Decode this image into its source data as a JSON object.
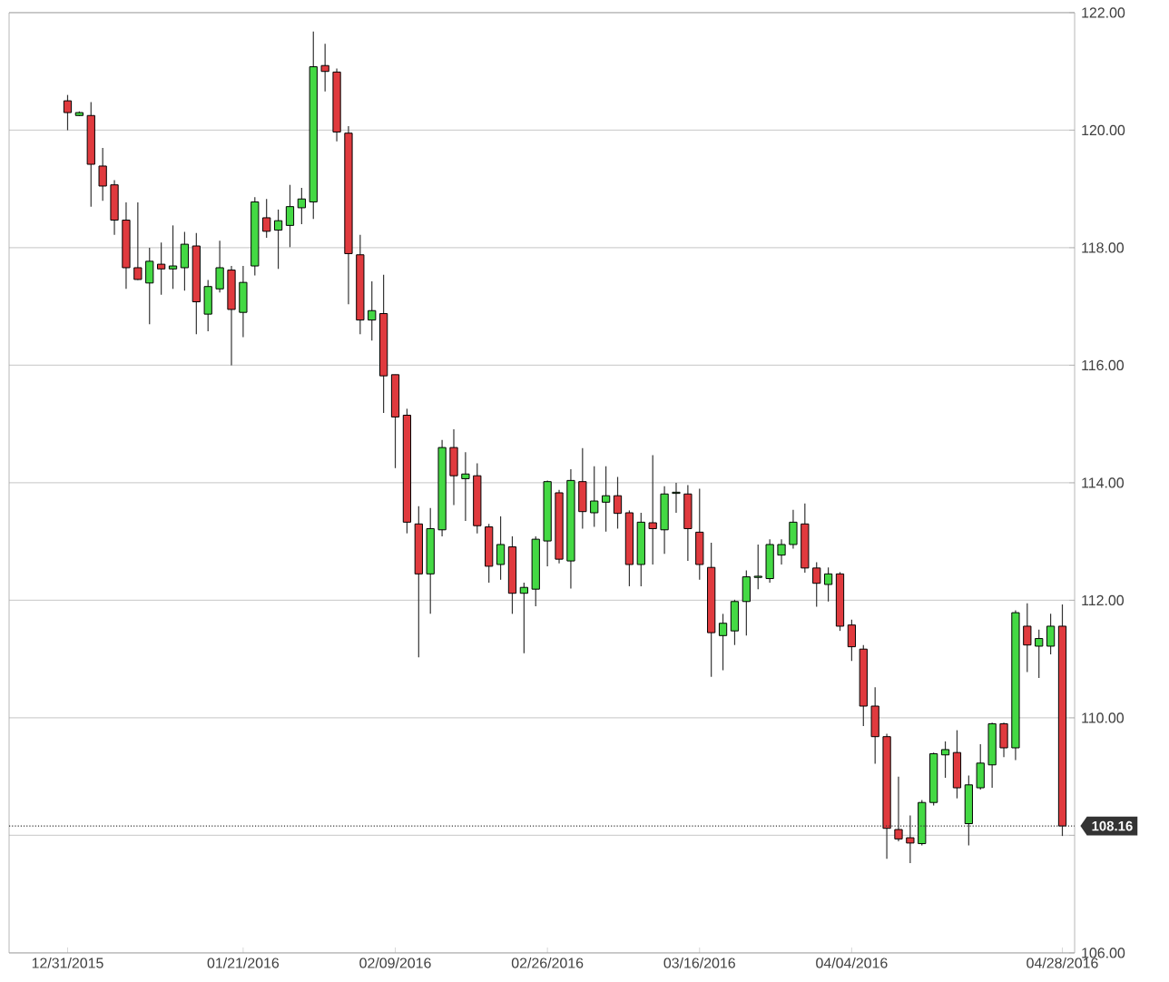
{
  "chart_data": {
    "type": "candlestick",
    "categories": [
      "12/31/2015",
      null,
      null,
      null,
      null,
      null,
      null,
      null,
      null,
      null,
      null,
      null,
      null,
      null,
      null,
      "01/21/2016",
      null,
      null,
      null,
      null,
      null,
      null,
      null,
      null,
      null,
      null,
      null,
      null,
      "02/09/2016",
      null,
      null,
      null,
      null,
      null,
      null,
      null,
      null,
      null,
      null,
      null,
      null,
      "02/26/2016",
      null,
      null,
      null,
      null,
      null,
      null,
      null,
      null,
      null,
      null,
      null,
      null,
      "03/16/2016",
      null,
      null,
      null,
      null,
      null,
      null,
      null,
      null,
      null,
      null,
      null,
      null,
      "04/04/2016",
      null,
      null,
      null,
      null,
      null,
      null,
      null,
      null,
      null,
      null,
      null,
      null,
      null,
      null,
      null,
      null,
      null,
      "04/28/2016"
    ],
    "ohlc": [
      [
        120.5,
        120.6,
        120.0,
        120.3
      ],
      [
        120.25,
        120.32,
        120.24,
        120.3
      ],
      [
        120.25,
        120.48,
        118.7,
        119.42
      ],
      [
        119.39,
        119.7,
        118.8,
        119.05
      ],
      [
        119.07,
        119.15,
        118.22,
        118.47
      ],
      [
        118.47,
        118.77,
        117.3,
        117.66
      ],
      [
        117.66,
        118.77,
        117.45,
        117.46
      ],
      [
        117.4,
        118.0,
        116.7,
        117.77
      ],
      [
        117.72,
        118.09,
        117.2,
        117.64
      ],
      [
        117.64,
        118.38,
        117.3,
        117.69
      ],
      [
        117.66,
        118.27,
        117.27,
        118.06
      ],
      [
        118.03,
        118.25,
        116.53,
        117.08
      ],
      [
        116.87,
        117.45,
        116.58,
        117.34
      ],
      [
        117.3,
        118.12,
        117.24,
        117.66
      ],
      [
        117.62,
        117.69,
        116.0,
        116.95
      ],
      [
        116.9,
        117.69,
        116.48,
        117.41
      ],
      [
        117.69,
        118.86,
        117.53,
        118.78
      ],
      [
        118.51,
        118.83,
        118.17,
        118.28
      ],
      [
        118.3,
        118.65,
        117.64,
        118.46
      ],
      [
        118.38,
        119.07,
        118.01,
        118.7
      ],
      [
        118.68,
        119.02,
        118.4,
        118.83
      ],
      [
        118.78,
        121.68,
        118.49,
        121.08
      ],
      [
        121.1,
        121.47,
        120.66,
        121.0
      ],
      [
        120.99,
        121.05,
        119.81,
        119.97
      ],
      [
        119.95,
        120.07,
        117.04,
        117.9
      ],
      [
        117.88,
        118.22,
        116.53,
        116.77
      ],
      [
        116.77,
        117.43,
        116.42,
        116.93
      ],
      [
        116.88,
        117.54,
        115.19,
        115.82
      ],
      [
        115.84,
        115.84,
        114.25,
        115.12
      ],
      [
        115.15,
        115.26,
        113.14,
        113.33
      ],
      [
        113.3,
        113.6,
        111.03,
        112.45
      ],
      [
        112.45,
        113.57,
        111.77,
        113.22
      ],
      [
        113.2,
        114.73,
        113.09,
        114.6
      ],
      [
        114.6,
        114.91,
        113.62,
        114.12
      ],
      [
        114.07,
        114.52,
        113.35,
        114.15
      ],
      [
        114.12,
        114.33,
        113.14,
        113.27
      ],
      [
        113.25,
        113.3,
        112.3,
        112.58
      ],
      [
        112.61,
        113.43,
        112.35,
        112.95
      ],
      [
        112.91,
        113.09,
        111.77,
        112.12
      ],
      [
        112.12,
        112.3,
        111.1,
        112.22
      ],
      [
        112.19,
        113.09,
        111.9,
        113.04
      ],
      [
        113.01,
        114.04,
        112.58,
        114.02
      ],
      [
        113.83,
        113.88,
        112.63,
        112.7
      ],
      [
        112.67,
        114.23,
        112.2,
        114.04
      ],
      [
        114.02,
        114.59,
        113.22,
        113.51
      ],
      [
        113.49,
        114.28,
        113.25,
        113.69
      ],
      [
        113.67,
        114.28,
        113.17,
        113.78
      ],
      [
        113.78,
        114.1,
        113.22,
        113.48
      ],
      [
        113.49,
        113.53,
        112.24,
        112.61
      ],
      [
        112.61,
        113.49,
        112.24,
        113.33
      ],
      [
        113.32,
        114.47,
        112.61,
        113.22
      ],
      [
        113.2,
        113.94,
        112.79,
        113.81
      ],
      [
        113.82,
        114.0,
        113.49,
        113.84
      ],
      [
        113.81,
        113.96,
        112.67,
        113.22
      ],
      [
        113.16,
        113.9,
        112.35,
        112.61
      ],
      [
        112.56,
        112.98,
        110.7,
        111.45
      ],
      [
        111.4,
        111.77,
        110.81,
        111.61
      ],
      [
        111.48,
        112.01,
        111.24,
        111.98
      ],
      [
        111.98,
        112.51,
        111.4,
        112.4
      ],
      [
        112.39,
        112.95,
        112.19,
        112.41
      ],
      [
        112.37,
        113.04,
        112.3,
        112.95
      ],
      [
        112.77,
        113.04,
        112.61,
        112.95
      ],
      [
        112.95,
        113.54,
        112.88,
        113.33
      ],
      [
        113.3,
        113.65,
        112.47,
        112.55
      ],
      [
        112.55,
        112.65,
        111.89,
        112.29
      ],
      [
        112.27,
        112.56,
        111.98,
        112.45
      ],
      [
        112.45,
        112.48,
        111.48,
        111.56
      ],
      [
        111.58,
        111.67,
        110.97,
        111.21
      ],
      [
        111.17,
        111.24,
        109.86,
        110.2
      ],
      [
        110.2,
        110.52,
        109.22,
        109.68
      ],
      [
        109.68,
        109.73,
        107.6,
        108.12
      ],
      [
        108.1,
        109.0,
        107.9,
        107.94
      ],
      [
        107.96,
        108.34,
        107.53,
        107.87
      ],
      [
        107.86,
        108.6,
        107.83,
        108.56
      ],
      [
        108.56,
        109.41,
        108.51,
        109.39
      ],
      [
        109.37,
        109.6,
        108.98,
        109.46
      ],
      [
        109.41,
        109.79,
        108.63,
        108.81
      ],
      [
        108.2,
        109.02,
        107.83,
        108.86
      ],
      [
        108.81,
        109.55,
        108.78,
        109.23
      ],
      [
        109.2,
        109.92,
        108.81,
        109.9
      ],
      [
        109.9,
        109.92,
        109.33,
        109.49
      ],
      [
        109.49,
        111.83,
        109.28,
        111.79
      ],
      [
        111.56,
        111.95,
        110.78,
        111.24
      ],
      [
        111.22,
        111.5,
        110.68,
        111.35
      ],
      [
        111.22,
        111.77,
        111.08,
        111.56
      ],
      [
        111.56,
        111.93,
        107.99,
        108.16
      ]
    ],
    "ylim": [
      106,
      122
    ],
    "yticks": [
      {
        "value": 106,
        "label": "106.00"
      },
      {
        "value": 108,
        "label": null
      },
      {
        "value": 110,
        "label": "110.00"
      },
      {
        "value": 112,
        "label": "112.00"
      },
      {
        "value": 114,
        "label": "114.00"
      },
      {
        "value": 116,
        "label": "116.00"
      },
      {
        "value": 118,
        "label": "118.00"
      },
      {
        "value": 120,
        "label": "120.00"
      },
      {
        "value": 122,
        "label": "122.00"
      }
    ],
    "grid": "y",
    "ref_lines": [
      {
        "axis": "y",
        "value": 108.16,
        "label": "108.16",
        "line_style": "dotted",
        "color": "#333333"
      }
    ]
  }
}
